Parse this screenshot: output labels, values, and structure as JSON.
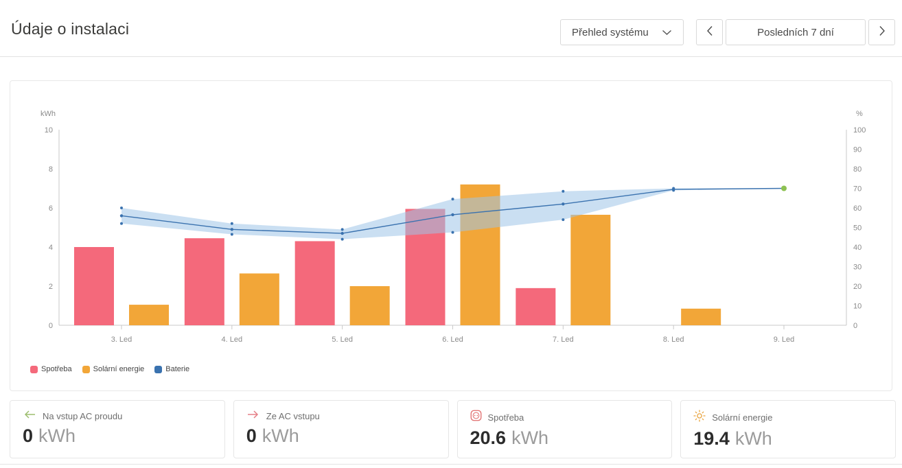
{
  "header": {
    "title": "Údaje o instalaci"
  },
  "toolbar": {
    "system_select_label": "Přehled systému",
    "date_range_label": "Posledních 7 dní"
  },
  "chart_data": {
    "type": "combo",
    "categories": [
      "3. Led",
      "4. Led",
      "5. Led",
      "6. Led",
      "7. Led",
      "8. Led",
      "9. Led"
    ],
    "series": [
      {
        "name": "Spotřeba",
        "type": "bar",
        "unit": "kWh",
        "color": "#F4697B",
        "values": [
          4.0,
          4.45,
          4.3,
          5.95,
          1.9,
          0,
          0
        ]
      },
      {
        "name": "Solární energie",
        "type": "bar",
        "unit": "kWh",
        "color": "#F2A638",
        "values": [
          1.05,
          2.65,
          2.0,
          7.2,
          5.65,
          0.85,
          0
        ]
      },
      {
        "name": "Baterie",
        "type": "line",
        "unit": "%",
        "color": "#3A72AF",
        "band_color": "#9EC4E8",
        "end_marker_color": "#8DC152",
        "values": [
          56,
          49,
          47,
          56.5,
          62,
          69.5,
          70
        ],
        "band_upper": [
          60,
          52,
          49,
          64.5,
          68.5,
          70,
          70
        ],
        "band_lower": [
          52,
          46.5,
          44,
          47.5,
          54,
          69,
          70
        ]
      }
    ],
    "left_axis": {
      "label": "kWh",
      "min": 0,
      "max": 10,
      "ticks": [
        0,
        2,
        4,
        6,
        8,
        10
      ]
    },
    "right_axis": {
      "label": "%",
      "min": 0,
      "max": 100,
      "ticks": [
        0,
        10,
        20,
        30,
        40,
        50,
        60,
        70,
        80,
        90,
        100
      ]
    },
    "legend_position": "bottom-left",
    "grid": false
  },
  "summary_cards": [
    {
      "label": "Na vstup AC proudu",
      "value": "0",
      "unit": "kWh",
      "icon": "arrow-left-icon",
      "icon_color": "#9CBE6E"
    },
    {
      "label": "Ze AC vstupu",
      "value": "0",
      "unit": "kWh",
      "icon": "arrow-right-icon",
      "icon_color": "#E57F87"
    },
    {
      "label": "Spotřeba",
      "value": "20.6",
      "unit": "kWh",
      "icon": "outlet-icon",
      "icon_color": "#E06C6C"
    },
    {
      "label": "Solární energie",
      "value": "19.4",
      "unit": "kWh",
      "icon": "sun-icon",
      "icon_color": "#E8A33D"
    }
  ]
}
